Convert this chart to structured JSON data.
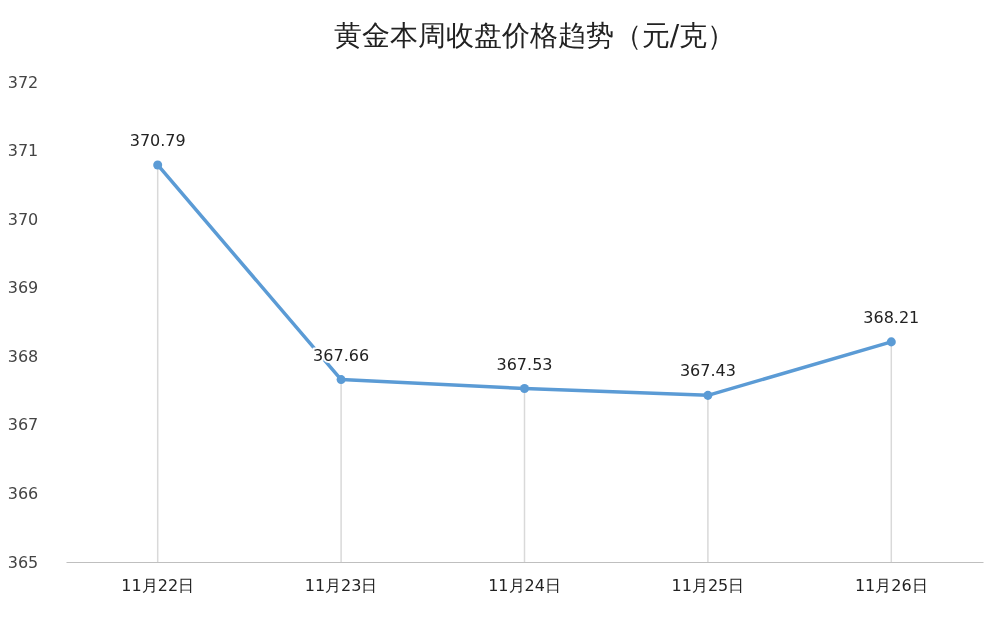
{
  "chart_data": {
    "type": "line",
    "title": "黄金本周收盘价格趋势（元/克）",
    "categories": [
      "11月22日",
      "11月23日",
      "11月24日",
      "11月25日",
      "11月26日"
    ],
    "series": [
      {
        "color": "#5b9bd5",
        "values": [
          370.79,
          367.66,
          367.53,
          367.43,
          368.21
        ]
      }
    ],
    "ylim": [
      365,
      372
    ],
    "yticks": [
      365,
      366,
      367,
      368,
      369,
      370,
      371,
      372
    ],
    "grid": "x",
    "marker": "circle",
    "line_style": "solid",
    "data_labels": true
  }
}
